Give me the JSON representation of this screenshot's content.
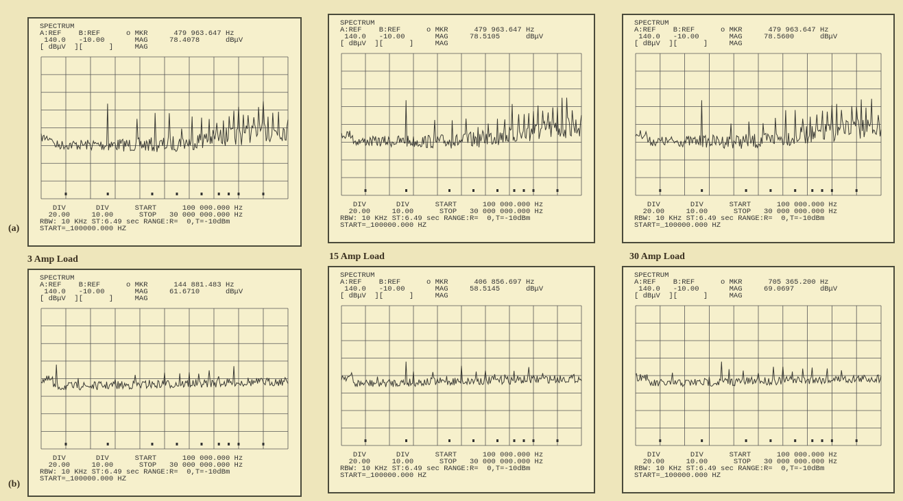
{
  "captions": {
    "a": "(a)",
    "b": "(b)"
  },
  "loads": [
    "3 Amp Load",
    "15 Amp Load",
    "30 Amp Load"
  ],
  "panels": [
    {
      "header": [
        "SPECTRUM",
        "A:REF    B:REF      o MKR      479 963.647 Hz",
        " 140.0   -10.00       MAG     78.4078      dBμV",
        "[ dBμV  ][      ]     MAG"
      ],
      "footer": [
        "   DIV       DIV      START      100 000.000 Hz",
        "  20.00     10.00      STOP   30 000 000.000 Hz",
        "RBW: 10 KHz ST:6.49 sec RANGE:R=  0,T=-10dBm",
        "START=_100000.000 HZ"
      ]
    },
    {
      "header": [
        "SPECTRUM",
        "A:REF    B:REF      o MKR      479 963.647 Hz",
        " 140.0   -10.00       MAG     78.5105      dBμV",
        "[ dBμV  ][      ]     MAG"
      ],
      "footer": [
        "   DIV       DIV      START      100 000.000 Hz",
        "  20.00     10.00      STOP   30 000 000.000 Hz",
        "RBW: 10 KHz ST:6.49 sec RANGE:R=  0,T=-10dBm",
        "START=_100000.000 HZ"
      ]
    },
    {
      "header": [
        "SPECTRUM",
        "A:REF    B:REF      o MKR      479 963.647 Hz",
        " 140.0   -10.00       MAG     78.5600      dBμV",
        "[ dBμV  ][      ]     MAG"
      ],
      "footer": [
        "   DIV       DIV      START      100 000.000 Hz",
        "  20.00     10.00      STOP   30 000 000.000 Hz",
        "RBW: 10 KHz ST:6.49 sec RANGE:R=  0,T=-10dBm",
        "START=_100000.000 HZ"
      ]
    },
    {
      "header": [
        "SPECTRUM",
        "A:REF    B:REF      o MKR      144 881.483 Hz",
        " 140.0   -10.00       MAG     61.6710      dBμV",
        "[ dBμV  ][      ]     MAG"
      ],
      "footer": [
        "   DIV       DIV      START      100 000.000 Hz",
        "  20.00     10.00      STOP   30 000 000.000 Hz",
        "RBW: 10 KHz ST:6.49 sec RANGE:R=  0,T=-10dBm",
        "START=_100000.000 HZ"
      ]
    },
    {
      "header": [
        "SPECTRUM",
        "A:REF    B:REF      o MKR      406 856.697 Hz",
        " 140.0   -10.00       MAG     58.5145      dBμV",
        "[ dBμV  ][      ]     MAG"
      ],
      "footer": [
        "   DIV       DIV      START      100 000.000 Hz",
        "  20.00     10.00      STOP   30 000 000.000 Hz",
        "RBW: 10 KHz ST:6.49 sec RANGE:R=  0,T=-10dBm",
        "START=_100000.000 HZ"
      ]
    },
    {
      "header": [
        "SPECTRUM",
        "A:REF    B:REF      o MKR      705 365.200 Hz",
        " 140.0   -10.00       MAG     69.0697      dBμV",
        "[ dBμV  ][      ]     MAG"
      ],
      "footer": [
        "   DIV       DIV      START      100 000.000 Hz",
        "  20.00     10.00      STOP   30 000 000.000 Hz",
        "RBW: 10 KHz ST:6.49 sec RANGE:R=  0,T=-10dBm",
        "START=_100000.000 HZ"
      ]
    }
  ]
}
